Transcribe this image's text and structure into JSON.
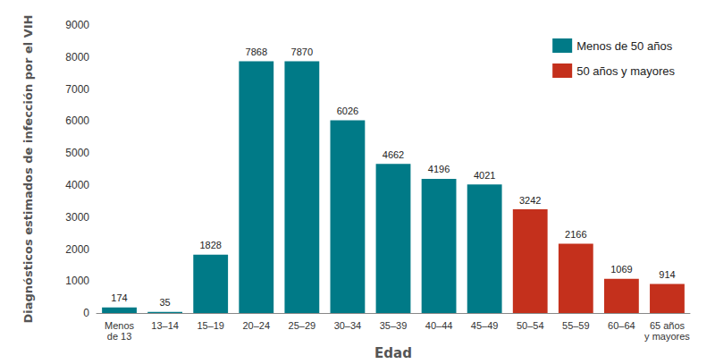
{
  "chart_data": {
    "type": "bar",
    "x_label": "Edad",
    "y_label": "Diagnósticos estimados de infección por el VIH",
    "categories": [
      "Menos\nde 13",
      "13–14",
      "15–19",
      "20–24",
      "25–29",
      "30–34",
      "35–39",
      "40–44",
      "45–49",
      "50–54",
      "55–59",
      "60–64",
      "65 años\ny mayores"
    ],
    "series": [
      {
        "name": "Menos de 50 años",
        "color": "#007a87",
        "values": [
          174,
          35,
          1828,
          7868,
          7870,
          6026,
          4662,
          4196,
          4021,
          null,
          null,
          null,
          null
        ]
      },
      {
        "name": "50 años y mayores",
        "color": "#c4301c",
        "values": [
          null,
          null,
          null,
          null,
          null,
          null,
          null,
          null,
          null,
          3242,
          2166,
          1069,
          914
        ]
      }
    ],
    "ylim": [
      0,
      9000
    ],
    "yticks": [
      0,
      1000,
      2000,
      3000,
      4000,
      5000,
      6000,
      7000,
      8000,
      9000
    ],
    "grid": false,
    "data_labels": true,
    "legend": "upper right"
  }
}
